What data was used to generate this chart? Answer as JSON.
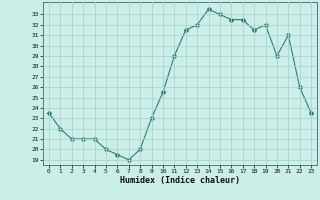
{
  "x": [
    0,
    1,
    2,
    3,
    4,
    5,
    6,
    7,
    8,
    9,
    10,
    11,
    12,
    13,
    14,
    15,
    16,
    17,
    18,
    19,
    20,
    21,
    22,
    23
  ],
  "y": [
    23.5,
    22.0,
    21.0,
    21.0,
    21.0,
    20.0,
    19.5,
    19.0,
    20.0,
    23.0,
    25.5,
    29.0,
    31.5,
    32.0,
    33.5,
    33.0,
    32.5,
    32.5,
    31.5,
    32.0,
    29.0,
    31.0,
    26.0,
    23.5
  ],
  "line_color": "#2d7d6e",
  "marker": "D",
  "markersize": 2.0,
  "bg_color": "#cceee8",
  "grid_color": "#aad4cc",
  "xlabel": "Humidex (Indice chaleur)",
  "xlim": [
    -0.5,
    23.5
  ],
  "ylim": [
    18.5,
    34.2
  ],
  "yticks": [
    19,
    20,
    21,
    22,
    23,
    24,
    25,
    26,
    27,
    28,
    29,
    30,
    31,
    32,
    33
  ],
  "xticks": [
    0,
    1,
    2,
    3,
    4,
    5,
    6,
    7,
    8,
    9,
    10,
    11,
    12,
    13,
    14,
    15,
    16,
    17,
    18,
    19,
    20,
    21,
    22,
    23
  ]
}
